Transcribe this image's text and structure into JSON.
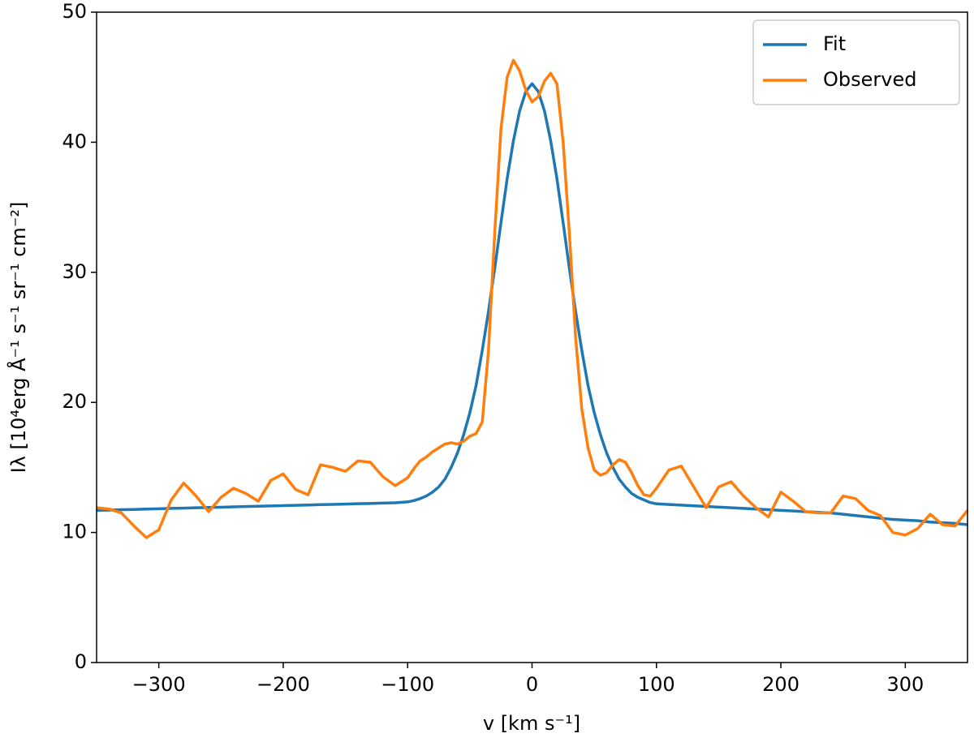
{
  "chart_data": {
    "type": "line",
    "xlabel": "v [km s⁻¹]",
    "ylabel": "Iλ [10⁴erg Å⁻¹ s⁻¹ sr⁻¹ cm⁻²]",
    "x": [
      -350,
      -340,
      -330,
      -320,
      -310,
      -300,
      -290,
      -280,
      -270,
      -260,
      -250,
      -240,
      -230,
      -220,
      -210,
      -200,
      -190,
      -180,
      -170,
      -160,
      -150,
      -140,
      -130,
      -120,
      -110,
      -100,
      -95,
      -90,
      -85,
      -80,
      -75,
      -70,
      -65,
      -60,
      -55,
      -50,
      -45,
      -40,
      -35,
      -30,
      -25,
      -20,
      -15,
      -10,
      -5,
      0,
      5,
      10,
      15,
      20,
      25,
      30,
      35,
      40,
      45,
      50,
      55,
      60,
      65,
      70,
      75,
      80,
      85,
      90,
      95,
      100,
      110,
      120,
      130,
      140,
      150,
      160,
      170,
      180,
      190,
      200,
      210,
      220,
      230,
      240,
      250,
      260,
      270,
      280,
      290,
      300,
      310,
      320,
      330,
      340,
      350
    ],
    "series": [
      {
        "name": "Fit",
        "color": "#1f77b4",
        "values": [
          11.7,
          11.72,
          11.75,
          11.77,
          11.8,
          11.82,
          11.85,
          11.87,
          11.9,
          11.92,
          11.94,
          11.97,
          11.99,
          12.02,
          12.04,
          12.06,
          12.09,
          12.11,
          12.14,
          12.16,
          12.18,
          12.21,
          12.23,
          12.26,
          12.28,
          12.35,
          12.45,
          12.6,
          12.8,
          13.1,
          13.5,
          14.1,
          15.0,
          16.1,
          17.5,
          19.2,
          21.3,
          24.0,
          27.0,
          30.3,
          33.8,
          37.2,
          40.1,
          42.4,
          43.9,
          44.5,
          43.9,
          42.4,
          40.1,
          37.2,
          33.8,
          30.3,
          27.0,
          24.0,
          21.3,
          19.2,
          17.5,
          16.1,
          15.0,
          14.1,
          13.5,
          13.0,
          12.7,
          12.5,
          12.3,
          12.2,
          12.15,
          12.1,
          12.05,
          12.0,
          11.95,
          11.9,
          11.85,
          11.8,
          11.75,
          11.7,
          11.65,
          11.6,
          11.55,
          11.5,
          11.4,
          11.3,
          11.2,
          11.1,
          11.0,
          10.95,
          10.9,
          10.8,
          10.75,
          10.7,
          10.6
        ]
      },
      {
        "name": "Observed",
        "color": "#ff7f0e",
        "values": [
          11.9,
          11.8,
          11.5,
          10.5,
          9.6,
          10.2,
          12.5,
          13.8,
          12.8,
          11.6,
          12.7,
          13.4,
          13.0,
          12.4,
          14.0,
          14.5,
          13.3,
          12.9,
          15.2,
          15.0,
          14.7,
          15.5,
          15.4,
          14.3,
          13.6,
          14.2,
          14.9,
          15.5,
          15.8,
          16.2,
          16.5,
          16.8,
          16.9,
          16.8,
          17.0,
          17.4,
          17.6,
          18.5,
          24,
          33,
          41,
          45,
          46.3,
          45.5,
          44,
          43.1,
          43.5,
          44.7,
          45.3,
          44.5,
          40,
          33,
          25,
          19.5,
          16.5,
          14.8,
          14.4,
          14.6,
          15.2,
          15.6,
          15.4,
          14.6,
          13.6,
          12.9,
          12.8,
          13.4,
          14.8,
          15.1,
          13.5,
          11.9,
          13.5,
          13.9,
          12.8,
          11.9,
          11.2,
          13.1,
          12.4,
          11.6,
          11.5,
          11.5,
          12.8,
          12.6,
          11.7,
          11.3,
          10.0,
          9.8,
          10.3,
          11.4,
          10.6,
          10.5,
          11.7
        ]
      }
    ],
    "xlim": [
      -350,
      350
    ],
    "ylim": [
      0,
      50
    ],
    "xticks": [
      {
        "value": -300,
        "label": "−300"
      },
      {
        "value": -200,
        "label": "−200"
      },
      {
        "value": -100,
        "label": "−100"
      },
      0,
      100,
      200,
      300
    ],
    "yticks": [
      0,
      10,
      20,
      30,
      40,
      50
    ],
    "legend": "upper right"
  }
}
